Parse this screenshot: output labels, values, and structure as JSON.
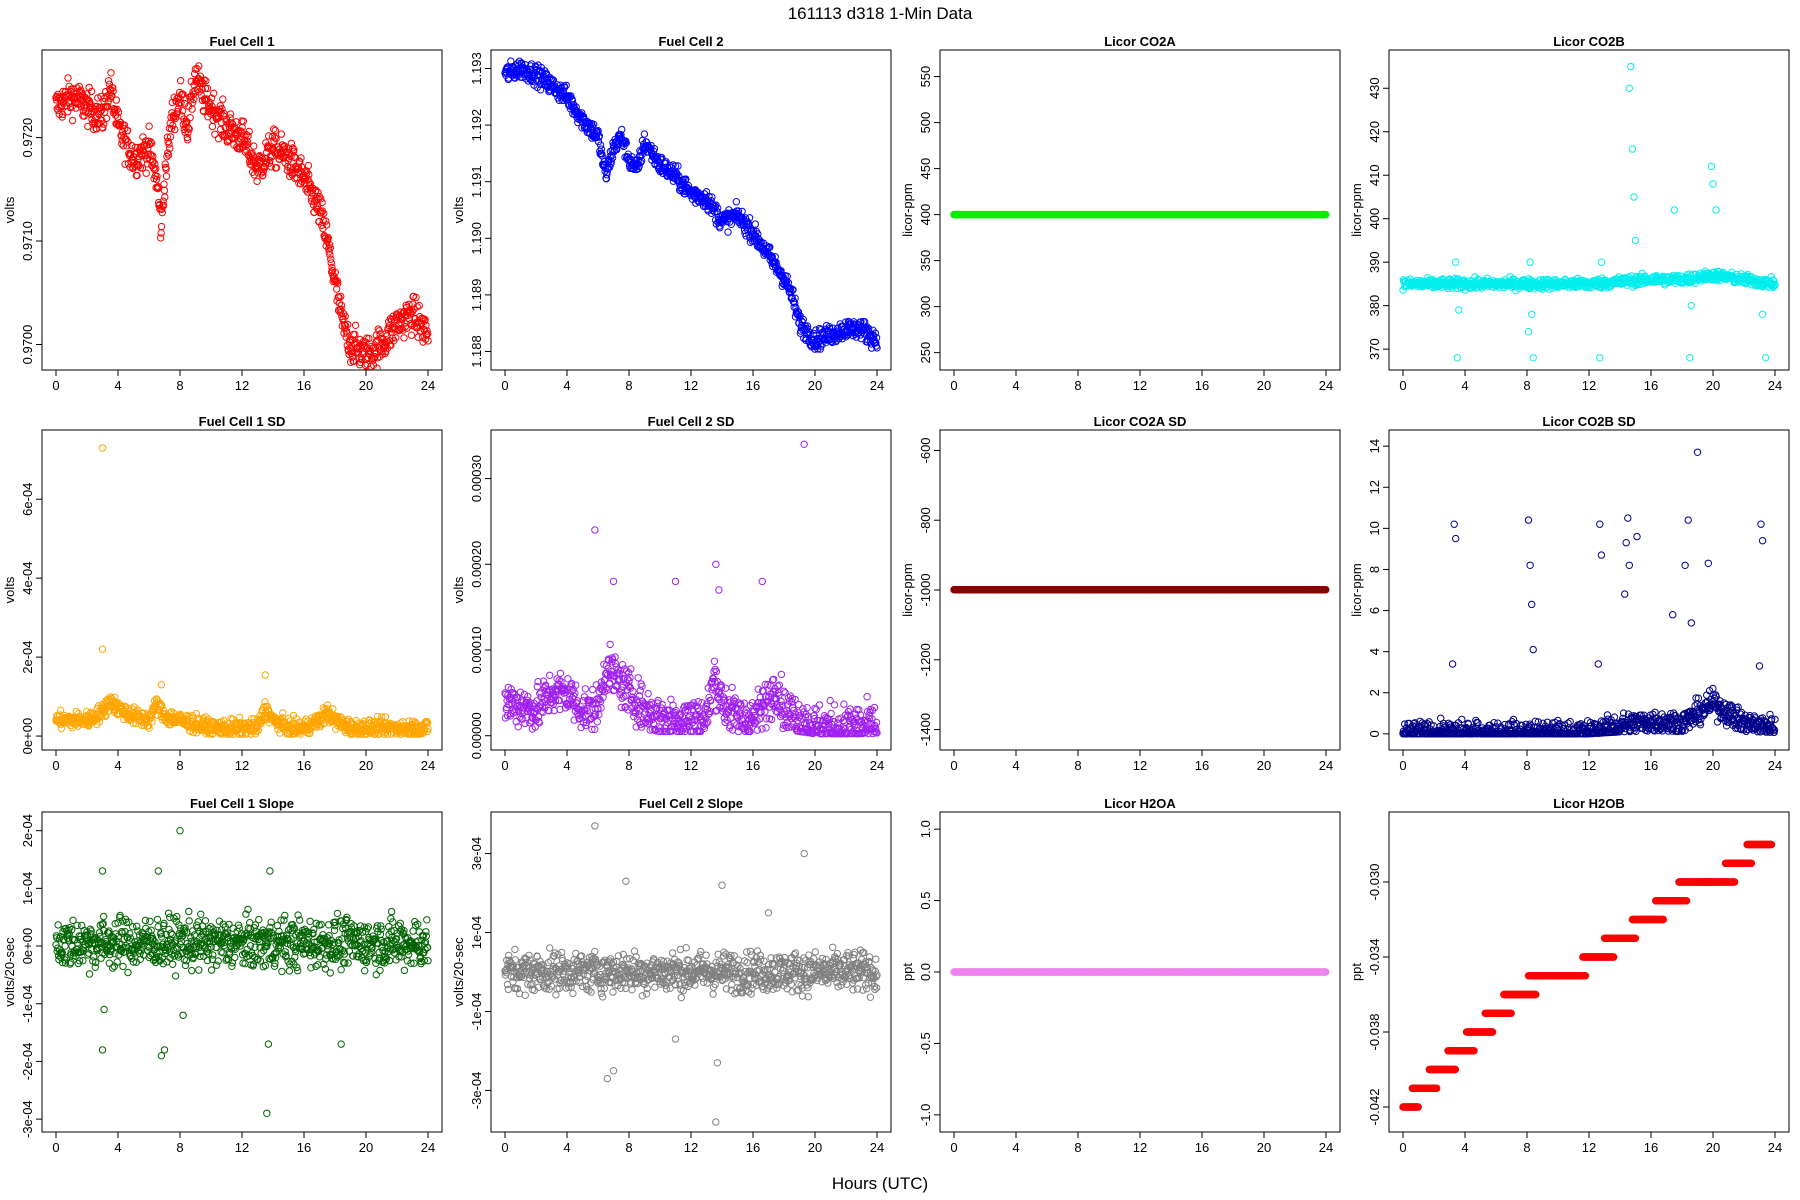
{
  "figure": {
    "title": "161113   d318   1-Min Data",
    "xlabel": "Hours (UTC)"
  },
  "chart_data": [
    {
      "type": "scatter",
      "title": "Fuel Cell 1",
      "ylabel": "volts",
      "color": "#ff0000",
      "xlim": [
        0,
        24
      ],
      "xticks": [
        0,
        4,
        8,
        12,
        16,
        20,
        24
      ],
      "ylim": [
        0.96985,
        0.97275
      ],
      "yticks": [
        0.97,
        0.971,
        0.972
      ],
      "ytick_labels": [
        "0.9700",
        "0.9710",
        "0.9720"
      ],
      "x": [
        0,
        1,
        2,
        3,
        3.5,
        4,
        5,
        6,
        6.5,
        6.8,
        7,
        7.5,
        8,
        8.5,
        9,
        9.5,
        10,
        11,
        12,
        13,
        14,
        15,
        16,
        17,
        17.5,
        18,
        18.5,
        19,
        20,
        21,
        22,
        23,
        24
      ],
      "y": [
        0.9723,
        0.9724,
        0.9723,
        0.9722,
        0.9725,
        0.9721,
        0.9718,
        0.9719,
        0.9716,
        0.9711,
        0.9716,
        0.9722,
        0.9724,
        0.9721,
        0.9726,
        0.9724,
        0.9723,
        0.9721,
        0.972,
        0.9717,
        0.9719,
        0.9718,
        0.9716,
        0.9713,
        0.971,
        0.9706,
        0.9702,
        0.97,
        0.9699,
        0.97,
        0.9702,
        0.9703,
        0.9701
      ],
      "jitter": 0.00012
    },
    {
      "type": "scatter",
      "title": "Fuel Cell 2",
      "ylabel": "volts",
      "color": "#0000ff",
      "xlim": [
        0,
        24
      ],
      "xticks": [
        0,
        4,
        8,
        12,
        16,
        20,
        24
      ],
      "ylim": [
        1.18785,
        1.19315
      ],
      "yticks": [
        1.188,
        1.189,
        1.19,
        1.191,
        1.192,
        1.193
      ],
      "ytick_labels": [
        "1.188",
        "1.189",
        "1.190",
        "1.191",
        "1.192",
        "1.193"
      ],
      "x": [
        0,
        1,
        2,
        3,
        4,
        5,
        6,
        6.5,
        7,
        7.5,
        8,
        8.5,
        9,
        10,
        11,
        12,
        13,
        14,
        15,
        16,
        17,
        18,
        18.5,
        19,
        20,
        21,
        22,
        23,
        24
      ],
      "y": [
        1.1929,
        1.193,
        1.1929,
        1.1927,
        1.1925,
        1.1921,
        1.1918,
        1.1911,
        1.1916,
        1.1918,
        1.1914,
        1.1912,
        1.1917,
        1.1913,
        1.1911,
        1.1908,
        1.1907,
        1.1903,
        1.1904,
        1.1901,
        1.1897,
        1.1893,
        1.189,
        1.1885,
        1.1882,
        1.1883,
        1.1884,
        1.1884,
        1.1882
      ],
      "jitter": 0.00012
    },
    {
      "type": "scatter",
      "title": "Licor CO2A",
      "ylabel": "licor-ppm",
      "color": "#00ee00",
      "xlim": [
        0,
        24
      ],
      "xticks": [
        0,
        4,
        8,
        12,
        16,
        20,
        24
      ],
      "ylim": [
        242,
        568
      ],
      "yticks": [
        250,
        300,
        350,
        400,
        450,
        500,
        550
      ],
      "ytick_labels": [
        "250",
        "300",
        "350",
        "400",
        "450",
        "500",
        "550"
      ],
      "x": [
        0,
        24
      ],
      "y": [
        400,
        400
      ],
      "jitter": 0
    },
    {
      "type": "scatter",
      "title": "Licor CO2B",
      "ylabel": "licor-ppm",
      "color": "#00eeee",
      "xlim": [
        0,
        24
      ],
      "xticks": [
        0,
        4,
        8,
        12,
        16,
        20,
        24
      ],
      "ylim": [
        367.5,
        436.5
      ],
      "yticks": [
        370,
        380,
        390,
        400,
        410,
        420,
        430
      ],
      "ytick_labels": [
        "370",
        "380",
        "390",
        "400",
        "410",
        "420",
        "430"
      ],
      "x": [
        0,
        12,
        14,
        16,
        18,
        20,
        22,
        24
      ],
      "y": [
        385,
        385,
        385.5,
        386,
        386,
        387,
        386,
        385
      ],
      "jitter": 0.8,
      "outliers": [
        [
          3.4,
          390
        ],
        [
          3.5,
          368
        ],
        [
          3.6,
          379
        ],
        [
          8.1,
          374
        ],
        [
          8.2,
          390
        ],
        [
          8.3,
          378
        ],
        [
          8.4,
          368
        ],
        [
          12.7,
          368
        ],
        [
          12.8,
          390
        ],
        [
          14.6,
          430
        ],
        [
          14.7,
          435
        ],
        [
          14.8,
          416
        ],
        [
          14.9,
          405
        ],
        [
          15.0,
          395
        ],
        [
          17.5,
          402
        ],
        [
          18.5,
          368
        ],
        [
          18.6,
          380
        ],
        [
          19.9,
          412
        ],
        [
          20.0,
          408
        ],
        [
          20.2,
          402
        ],
        [
          23.2,
          378
        ],
        [
          23.4,
          368
        ]
      ]
    },
    {
      "type": "scatter",
      "title": "Fuel Cell 1 SD",
      "ylabel": "volts",
      "color": "#ffa500",
      "xlim": [
        0,
        24
      ],
      "xticks": [
        0,
        4,
        8,
        12,
        16,
        20,
        24
      ],
      "ylim": [
        -1e-05,
        0.00075
      ],
      "yticks": [
        0,
        0.0002,
        0.0004,
        0.0006
      ],
      "ytick_labels": [
        "0e+00",
        "2e-04",
        "4e-04",
        "6e-04"
      ],
      "x": [
        0,
        2,
        3,
        3.5,
        4,
        5,
        6,
        6.5,
        7,
        8,
        9,
        10,
        12,
        13,
        13.5,
        14,
        15,
        16,
        17,
        17.5,
        18,
        19,
        20,
        22,
        24
      ],
      "y": [
        4e-05,
        4e-05,
        6e-05,
        9e-05,
        7e-05,
        5e-05,
        4e-05,
        8e-05,
        5e-05,
        4e-05,
        3e-05,
        2e-05,
        2e-05,
        2e-05,
        7e-05,
        4e-05,
        2e-05,
        2e-05,
        4e-05,
        6e-05,
        4e-05,
        2e-05,
        2e-05,
        2e-05,
        2e-05
      ],
      "jitter": 1.5e-05,
      "outliers": [
        [
          3.0,
          0.00073
        ],
        [
          3.0,
          0.00022
        ],
        [
          13.5,
          0.000155
        ],
        [
          6.8,
          0.00013
        ]
      ]
    },
    {
      "type": "scatter",
      "title": "Fuel Cell 2 SD",
      "ylabel": "volts",
      "color": "#a020f0",
      "xlim": [
        0,
        24
      ],
      "xticks": [
        0,
        4,
        8,
        12,
        16,
        20,
        24
      ],
      "ylim": [
        -5e-06,
        0.000345
      ],
      "yticks": [
        0,
        0.0001,
        0.0002,
        0.0003
      ],
      "ytick_labels": [
        "0.00000",
        "0.00010",
        "0.00020",
        "0.00030"
      ],
      "x": [
        0,
        2,
        3,
        4,
        5,
        6,
        6.5,
        7,
        8,
        9,
        10,
        12,
        13,
        13.5,
        14,
        15,
        16,
        17,
        17.5,
        18,
        19,
        20,
        22,
        24
      ],
      "y": [
        4e-05,
        3e-05,
        5e-05,
        5e-05,
        3e-05,
        3e-05,
        8e-05,
        7e-05,
        5e-05,
        3e-05,
        2e-05,
        2e-05,
        2e-05,
        7e-05,
        4e-05,
        2e-05,
        2e-05,
        4e-05,
        6e-05,
        3e-05,
        2e-05,
        1e-05,
        1e-05,
        1e-05
      ],
      "jitter": 1.8e-05,
      "outliers": [
        [
          5.8,
          0.00024
        ],
        [
          7.0,
          0.00018
        ],
        [
          11.0,
          0.00018
        ],
        [
          13.6,
          0.0002
        ],
        [
          13.8,
          0.00017
        ],
        [
          16.6,
          0.00018
        ],
        [
          19.3,
          0.00034
        ]
      ]
    },
    {
      "type": "scatter",
      "title": "Licor CO2A SD",
      "ylabel": "licor-ppm",
      "color": "#8b0000",
      "xlim": [
        0,
        24
      ],
      "xticks": [
        0,
        4,
        8,
        12,
        16,
        20,
        24
      ],
      "ylim": [
        -1430,
        -570
      ],
      "yticks": [
        -1400,
        -1200,
        -1000,
        -800,
        -600
      ],
      "ytick_labels": [
        "-1400",
        "-1200",
        "-1000",
        "-800",
        "-600"
      ],
      "x": [
        0,
        24
      ],
      "y": [
        -999,
        -999
      ],
      "jitter": 0
    },
    {
      "type": "scatter",
      "title": "Licor CO2B SD",
      "ylabel": "licor-ppm",
      "color": "#00008b",
      "xlim": [
        0,
        24
      ],
      "xticks": [
        0,
        4,
        8,
        12,
        16,
        20,
        24
      ],
      "ylim": [
        -0.3,
        14.3
      ],
      "yticks": [
        0,
        2,
        4,
        6,
        8,
        10,
        12,
        14
      ],
      "ytick_labels": [
        "0",
        "2",
        "4",
        "6",
        "8",
        "10",
        "12",
        "14"
      ],
      "x": [
        0,
        12,
        14,
        16,
        18,
        20,
        22,
        24
      ],
      "y": [
        0.02,
        0.03,
        0.4,
        0.6,
        0.5,
        1.5,
        0.5,
        0.3
      ],
      "jitter": 0.4,
      "outliers": [
        [
          3.3,
          10.2
        ],
        [
          3.4,
          9.5
        ],
        [
          3.2,
          3.4
        ],
        [
          8.1,
          10.4
        ],
        [
          8.2,
          8.2
        ],
        [
          8.3,
          6.3
        ],
        [
          8.4,
          4.1
        ],
        [
          12.7,
          10.2
        ],
        [
          12.8,
          8.7
        ],
        [
          12.6,
          3.4
        ],
        [
          14.5,
          10.5
        ],
        [
          14.4,
          9.3
        ],
        [
          14.6,
          8.2
        ],
        [
          14.3,
          6.8
        ],
        [
          15.1,
          9.6
        ],
        [
          18.4,
          10.4
        ],
        [
          18.2,
          8.2
        ],
        [
          18.6,
          5.4
        ],
        [
          17.4,
          5.8
        ],
        [
          19.0,
          13.7
        ],
        [
          19.7,
          8.3
        ],
        [
          23.1,
          10.2
        ],
        [
          23.2,
          9.4
        ],
        [
          23.0,
          3.3
        ]
      ]
    },
    {
      "type": "scatter",
      "title": "Fuel Cell 1 Slope",
      "ylabel": "volts/20-sec",
      "color": "#006400",
      "xlim": [
        0,
        24
      ],
      "xticks": [
        0,
        4,
        8,
        12,
        16,
        20,
        24
      ],
      "ylim": [
        -0.000305,
        0.000215
      ],
      "yticks": [
        -0.0003,
        -0.0002,
        -0.0001,
        0,
        0.0001,
        0.0002
      ],
      "ytick_labels": [
        "-3e-04",
        "-2e-04",
        "-1e-04",
        "0e+00",
        "1e-04",
        "2e-04"
      ],
      "x": [
        0,
        24
      ],
      "y": [
        5e-06,
        5e-06
      ],
      "jitter": 3e-05,
      "outliers": [
        [
          3.0,
          0.00013
        ],
        [
          3.1,
          -0.00011
        ],
        [
          3.0,
          -0.00018
        ],
        [
          6.6,
          0.00013
        ],
        [
          6.8,
          -0.00019
        ],
        [
          7.0,
          -0.00018
        ],
        [
          8.0,
          0.0002
        ],
        [
          8.2,
          -0.00012
        ],
        [
          13.6,
          -0.00029
        ],
        [
          13.7,
          -0.00017
        ],
        [
          13.8,
          0.00013
        ],
        [
          18.4,
          -0.00017
        ]
      ]
    },
    {
      "type": "scatter",
      "title": "Fuel Cell 2 Slope",
      "ylabel": "volts/20-sec",
      "color": "#808080",
      "xlim": [
        0,
        24
      ],
      "xticks": [
        0,
        4,
        8,
        12,
        16,
        20,
        24
      ],
      "ylim": [
        -0.00038,
        0.00038
      ],
      "yticks": [
        -0.0003,
        -0.0001,
        0.0001,
        0.0003
      ],
      "ytick_labels": [
        "-3e-04",
        "-1e-04",
        "1e-04",
        "3e-04"
      ],
      "x": [
        0,
        24
      ],
      "y": [
        0,
        0
      ],
      "jitter": 3.5e-05,
      "outliers": [
        [
          5.8,
          0.00037
        ],
        [
          7.8,
          0.00023
        ],
        [
          6.6,
          -0.00027
        ],
        [
          7.0,
          -0.00025
        ],
        [
          13.6,
          -0.00038
        ],
        [
          13.7,
          -0.00023
        ],
        [
          14.0,
          0.00022
        ],
        [
          19.3,
          0.0003
        ],
        [
          11.0,
          -0.00017
        ],
        [
          17.0,
          0.00015
        ]
      ]
    },
    {
      "type": "scatter",
      "title": "Licor H2OA",
      "ylabel": "ppt",
      "color": "#ee82ee",
      "xlim": [
        0,
        24
      ],
      "xticks": [
        0,
        4,
        8,
        12,
        16,
        20,
        24
      ],
      "ylim": [
        -1.05,
        1.05
      ],
      "yticks": [
        -1.0,
        -0.5,
        0.0,
        0.5,
        1.0
      ],
      "ytick_labels": [
        "-1.0",
        "-0.5",
        "0.0",
        "0.5",
        "1.0"
      ],
      "x": [
        0,
        24
      ],
      "y": [
        0,
        0
      ],
      "jitter": 0
    },
    {
      "type": "scatter",
      "title": "Licor H2OB",
      "ylabel": "ppt",
      "color": "#ff0000",
      "xlim": [
        0,
        24
      ],
      "xticks": [
        0,
        4,
        8,
        12,
        16,
        20,
        24
      ],
      "ylim": [
        -0.0428,
        -0.0268
      ],
      "yticks": [
        -0.042,
        -0.038,
        -0.034,
        -0.03
      ],
      "ytick_labels": [
        "-0.042",
        "-0.038",
        "-0.034",
        "-0.030"
      ],
      "steps": [
        [
          0.0,
          1.0,
          -0.042
        ],
        [
          0.6,
          2.2,
          -0.041
        ],
        [
          1.7,
          3.4,
          -0.04
        ],
        [
          2.9,
          4.6,
          -0.039
        ],
        [
          4.1,
          5.8,
          -0.038
        ],
        [
          5.3,
          7.0,
          -0.037
        ],
        [
          6.5,
          8.6,
          -0.036
        ],
        [
          8.1,
          10.0,
          -0.035
        ],
        [
          9.5,
          11.8,
          -0.035
        ],
        [
          11.6,
          13.6,
          -0.034
        ],
        [
          13.0,
          15.0,
          -0.033
        ],
        [
          14.8,
          16.8,
          -0.032
        ],
        [
          16.3,
          18.3,
          -0.031
        ],
        [
          17.8,
          19.8,
          -0.03
        ],
        [
          19.4,
          21.4,
          -0.03
        ],
        [
          20.8,
          22.5,
          -0.029
        ],
        [
          22.2,
          23.8,
          -0.028
        ]
      ],
      "x": [
        0,
        24
      ],
      "y": [
        -0.042,
        -0.028
      ],
      "jitter": 0
    }
  ]
}
